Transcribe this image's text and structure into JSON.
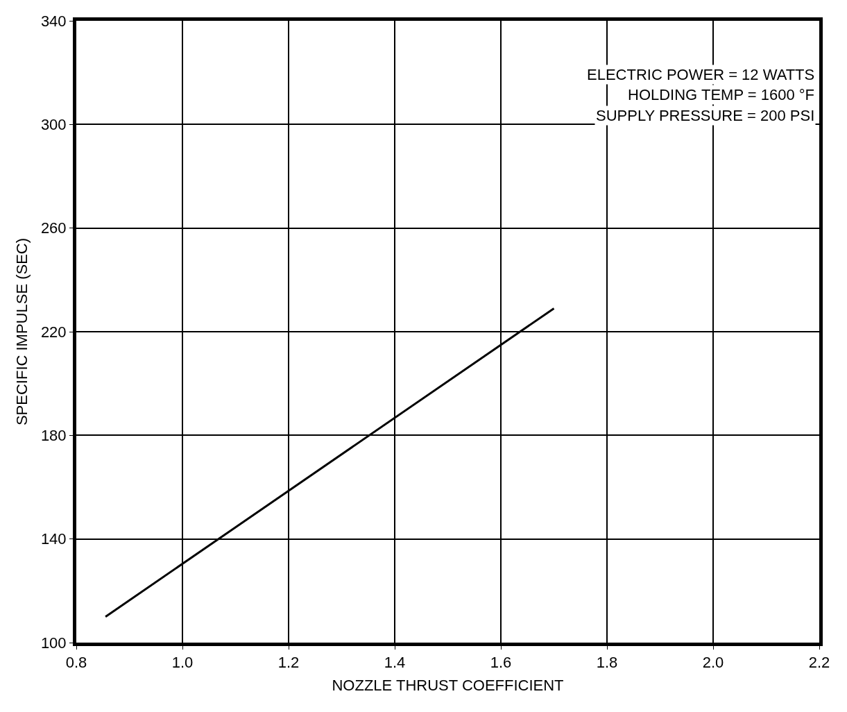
{
  "chart_data": {
    "type": "line",
    "xlabel": "NOZZLE THRUST COEFFICIENT",
    "ylabel": "SPECIFIC IMPULSE (SEC)",
    "annotations": [
      "ELECTRIC POWER = 12 WATTS",
      "HOLDING TEMP = 1600 °F",
      "SUPPLY PRESSURE = 200 PSI"
    ],
    "x": [
      0.855,
      1.7
    ],
    "series": [
      {
        "color": "#000000",
        "values": [
          110,
          229
        ]
      }
    ],
    "xlim": [
      0.8,
      2.2
    ],
    "xticks": [
      {
        "value": 0.8,
        "label": "0.8"
      },
      {
        "value": 1.0,
        "label": "1.0"
      },
      {
        "value": 1.2,
        "label": "1.2"
      },
      {
        "value": 1.4,
        "label": "1.4"
      },
      {
        "value": 1.6,
        "label": "1.6"
      },
      {
        "value": 1.8,
        "label": "1.8"
      },
      {
        "value": 2.0,
        "label": "2.0"
      },
      {
        "value": 2.2,
        "label": "2.2"
      }
    ],
    "ylim": [
      100,
      340
    ],
    "yticks": [
      100,
      140,
      180,
      220,
      260,
      300,
      340
    ],
    "grid": true,
    "marker": "none",
    "line_style": "solid"
  }
}
